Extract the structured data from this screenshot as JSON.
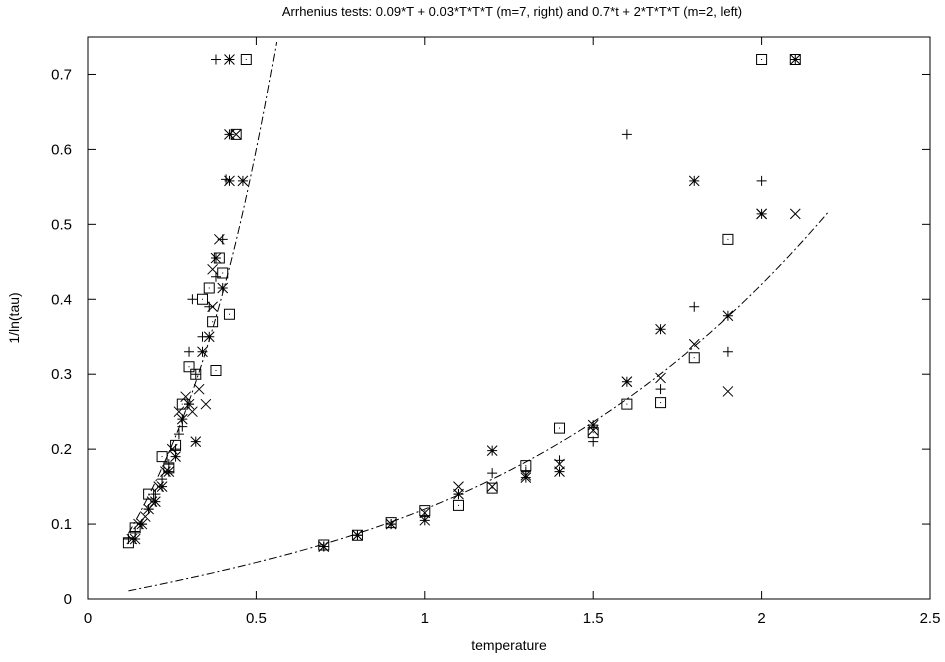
{
  "chart_data": {
    "type": "scatter",
    "title": "Arrhenius tests: 0.09*T + 0.03*T*T*T (m=7, right) and 0.7*t + 2*T*T*T (m=2, left)",
    "xlabel": "temperature",
    "ylabel": "1/ln(tau)",
    "xlim": [
      0,
      2.5
    ],
    "ylim": [
      0,
      0.75
    ],
    "x_ticks": [
      "0",
      "0.5",
      "1",
      "1.5",
      "2",
      "2.5"
    ],
    "y_ticks": [
      "0",
      "0.1",
      "0.2",
      "0.3",
      "0.4",
      "0.5",
      "0.6",
      "0.7"
    ],
    "grid": false,
    "legend": "none",
    "curves": [
      {
        "formula": "0.09*T + 0.03*T*T*T",
        "x_from": 0.12,
        "x_to": 2.2
      },
      {
        "formula": "0.7*T + 2*T*T*T",
        "x_from": 0.12,
        "x_to": 0.56
      }
    ],
    "series": [
      {
        "marker": "plus",
        "points": [
          [
            0.12,
            0.08
          ],
          [
            0.14,
            0.09
          ],
          [
            0.16,
            0.1
          ],
          [
            0.18,
            0.12
          ],
          [
            0.2,
            0.14
          ],
          [
            0.22,
            0.16
          ],
          [
            0.24,
            0.18
          ],
          [
            0.26,
            0.2
          ],
          [
            0.28,
            0.23
          ],
          [
            0.3,
            0.26
          ],
          [
            0.32,
            0.3
          ],
          [
            0.34,
            0.35
          ],
          [
            0.36,
            0.39
          ],
          [
            0.38,
            0.43
          ],
          [
            0.4,
            0.48
          ],
          [
            0.31,
            0.4
          ],
          [
            0.3,
            0.33
          ],
          [
            0.27,
            0.22
          ],
          [
            0.41,
            0.56
          ],
          [
            0.38,
            0.72
          ],
          [
            0.7,
            0.07
          ],
          [
            0.8,
            0.085
          ],
          [
            0.9,
            0.1
          ],
          [
            1.0,
            0.11
          ],
          [
            1.1,
            0.14
          ],
          [
            1.2,
            0.168
          ],
          [
            1.3,
            0.17
          ],
          [
            1.4,
            0.185
          ],
          [
            1.5,
            0.21
          ],
          [
            1.6,
            0.62
          ],
          [
            1.7,
            0.28
          ],
          [
            1.8,
            0.39
          ],
          [
            1.9,
            0.33
          ],
          [
            2.0,
            0.558
          ]
        ]
      },
      {
        "marker": "cross",
        "points": [
          [
            0.13,
            0.08
          ],
          [
            0.15,
            0.1
          ],
          [
            0.17,
            0.11
          ],
          [
            0.19,
            0.13
          ],
          [
            0.21,
            0.15
          ],
          [
            0.23,
            0.17
          ],
          [
            0.25,
            0.2
          ],
          [
            0.27,
            0.25
          ],
          [
            0.29,
            0.27
          ],
          [
            0.31,
            0.25
          ],
          [
            0.33,
            0.28
          ],
          [
            0.35,
            0.26
          ],
          [
            0.37,
            0.44
          ],
          [
            0.39,
            0.48
          ],
          [
            0.37,
            0.39
          ],
          [
            0.44,
            0.62
          ],
          [
            0.7,
            0.07
          ],
          [
            0.8,
            0.085
          ],
          [
            0.9,
            0.1
          ],
          [
            1.0,
            0.115
          ],
          [
            1.1,
            0.15
          ],
          [
            1.2,
            0.15
          ],
          [
            1.3,
            0.165
          ],
          [
            1.4,
            0.18
          ],
          [
            1.5,
            0.225
          ],
          [
            1.6,
            0.29
          ],
          [
            1.7,
            0.295
          ],
          [
            1.8,
            0.34
          ],
          [
            1.9,
            0.277
          ],
          [
            2.0,
            0.514
          ],
          [
            2.1,
            0.514
          ]
        ]
      },
      {
        "marker": "star",
        "points": [
          [
            0.14,
            0.08
          ],
          [
            0.16,
            0.1
          ],
          [
            0.18,
            0.12
          ],
          [
            0.2,
            0.13
          ],
          [
            0.22,
            0.15
          ],
          [
            0.24,
            0.17
          ],
          [
            0.26,
            0.19
          ],
          [
            0.28,
            0.24
          ],
          [
            0.3,
            0.26
          ],
          [
            0.32,
            0.21
          ],
          [
            0.34,
            0.33
          ],
          [
            0.36,
            0.35
          ],
          [
            0.38,
            0.455
          ],
          [
            0.4,
            0.415
          ],
          [
            0.42,
            0.558
          ],
          [
            0.42,
            0.72
          ],
          [
            0.42,
            0.62
          ],
          [
            0.46,
            0.558
          ],
          [
            0.7,
            0.07
          ],
          [
            0.8,
            0.085
          ],
          [
            0.9,
            0.1
          ],
          [
            1.0,
            0.105
          ],
          [
            1.1,
            0.14
          ],
          [
            1.2,
            0.198
          ],
          [
            1.3,
            0.162
          ],
          [
            1.4,
            0.17
          ],
          [
            1.5,
            0.232
          ],
          [
            1.6,
            0.29
          ],
          [
            1.7,
            0.36
          ],
          [
            1.8,
            0.558
          ],
          [
            1.9,
            0.378
          ],
          [
            2.0,
            0.514
          ],
          [
            2.1,
            0.72
          ]
        ]
      },
      {
        "marker": "square",
        "points": [
          [
            0.12,
            0.075
          ],
          [
            0.14,
            0.095
          ],
          [
            0.18,
            0.14
          ],
          [
            0.22,
            0.19
          ],
          [
            0.24,
            0.175
          ],
          [
            0.26,
            0.205
          ],
          [
            0.28,
            0.26
          ],
          [
            0.3,
            0.31
          ],
          [
            0.32,
            0.3
          ],
          [
            0.34,
            0.4
          ],
          [
            0.36,
            0.415
          ],
          [
            0.37,
            0.37
          ],
          [
            0.38,
            0.305
          ],
          [
            0.39,
            0.455
          ],
          [
            0.4,
            0.435
          ],
          [
            0.42,
            0.38
          ],
          [
            0.44,
            0.62
          ],
          [
            0.47,
            0.72
          ],
          [
            0.7,
            0.072
          ],
          [
            0.8,
            0.085
          ],
          [
            0.9,
            0.102
          ],
          [
            1.0,
            0.118
          ],
          [
            1.1,
            0.125
          ],
          [
            1.2,
            0.148
          ],
          [
            1.3,
            0.178
          ],
          [
            1.4,
            0.228
          ],
          [
            1.5,
            0.222
          ],
          [
            1.6,
            0.26
          ],
          [
            1.7,
            0.262
          ],
          [
            1.8,
            0.322
          ],
          [
            1.9,
            0.48
          ],
          [
            2.0,
            0.72
          ],
          [
            2.1,
            0.72
          ]
        ]
      }
    ]
  }
}
